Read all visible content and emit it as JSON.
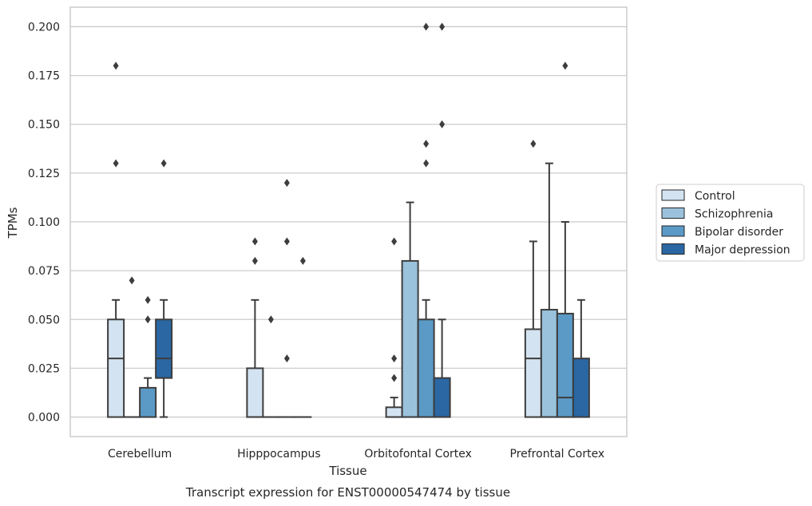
{
  "chart_data": {
    "type": "boxplot",
    "title": "Transcript expression for ENST00000547474 by tissue",
    "xlabel": "Tissue",
    "ylabel": "TPMs",
    "ylim": [
      -0.01,
      0.21
    ],
    "yticks": [
      0.0,
      0.025,
      0.05,
      0.075,
      0.1,
      0.125,
      0.15,
      0.175,
      0.2
    ],
    "ytick_labels": [
      "0.000",
      "0.025",
      "0.050",
      "0.075",
      "0.100",
      "0.125",
      "0.150",
      "0.175",
      "0.200"
    ],
    "grid": true,
    "legend_position": "center-right",
    "categories": [
      "Cerebellum",
      "Hipppocampus",
      "Orbitofontal Cortex",
      "Prefrontal Cortex"
    ],
    "series": [
      {
        "name": "Control",
        "color": "#d3e3f1",
        "boxes": [
          {
            "whisker_low": 0.0,
            "q1": 0.0,
            "median": 0.03,
            "q3": 0.05,
            "whisker_high": 0.06,
            "outliers": [
              0.13,
              0.18
            ]
          },
          {
            "whisker_low": 0.0,
            "q1": 0.0,
            "median": 0.0,
            "q3": 0.025,
            "whisker_high": 0.06,
            "outliers": [
              0.08,
              0.09
            ]
          },
          {
            "whisker_low": 0.0,
            "q1": 0.0,
            "median": 0.0,
            "q3": 0.005,
            "whisker_high": 0.01,
            "outliers": [
              0.02,
              0.03,
              0.09
            ]
          },
          {
            "whisker_low": 0.0,
            "q1": 0.0,
            "median": 0.03,
            "q3": 0.045,
            "whisker_high": 0.09,
            "outliers": [
              0.14
            ]
          }
        ]
      },
      {
        "name": "Schizophrenia",
        "color": "#9ac2dc",
        "boxes": [
          {
            "whisker_low": 0.0,
            "q1": 0.0,
            "median": 0.0,
            "q3": 0.0,
            "whisker_high": 0.0,
            "outliers": [
              0.07
            ]
          },
          {
            "whisker_low": 0.0,
            "q1": 0.0,
            "median": 0.0,
            "q3": 0.0,
            "whisker_high": 0.0,
            "outliers": [
              0.05
            ]
          },
          {
            "whisker_low": 0.0,
            "q1": 0.0,
            "median": 0.0,
            "q3": 0.08,
            "whisker_high": 0.11,
            "outliers": []
          },
          {
            "whisker_low": 0.0,
            "q1": 0.0,
            "median": 0.0,
            "q3": 0.055,
            "whisker_high": 0.13,
            "outliers": []
          }
        ]
      },
      {
        "name": "Bipolar disorder",
        "color": "#5b9ac6",
        "boxes": [
          {
            "whisker_low": 0.0,
            "q1": 0.0,
            "median": 0.0,
            "q3": 0.015,
            "whisker_high": 0.02,
            "outliers": [
              0.05,
              0.06
            ]
          },
          {
            "whisker_low": 0.0,
            "q1": 0.0,
            "median": 0.0,
            "q3": 0.0,
            "whisker_high": 0.0,
            "outliers": [
              0.03,
              0.09,
              0.12
            ]
          },
          {
            "whisker_low": 0.0,
            "q1": 0.0,
            "median": 0.0,
            "q3": 0.05,
            "whisker_high": 0.06,
            "outliers": [
              0.13,
              0.14,
              0.2
            ]
          },
          {
            "whisker_low": 0.0,
            "q1": 0.0,
            "median": 0.01,
            "q3": 0.053,
            "whisker_high": 0.1,
            "outliers": [
              0.18
            ]
          }
        ]
      },
      {
        "name": "Major depression",
        "color": "#2a67a3",
        "boxes": [
          {
            "whisker_low": 0.0,
            "q1": 0.02,
            "median": 0.03,
            "q3": 0.05,
            "whisker_high": 0.06,
            "outliers": [
              0.13
            ]
          },
          {
            "whisker_low": 0.0,
            "q1": 0.0,
            "median": 0.0,
            "q3": 0.0,
            "whisker_high": 0.0,
            "outliers": [
              0.08
            ]
          },
          {
            "whisker_low": 0.0,
            "q1": 0.0,
            "median": 0.0,
            "q3": 0.02,
            "whisker_high": 0.05,
            "outliers": [
              0.15,
              0.2
            ]
          },
          {
            "whisker_low": 0.0,
            "q1": 0.0,
            "median": 0.0,
            "q3": 0.03,
            "whisker_high": 0.06,
            "outliers": []
          }
        ]
      }
    ]
  }
}
